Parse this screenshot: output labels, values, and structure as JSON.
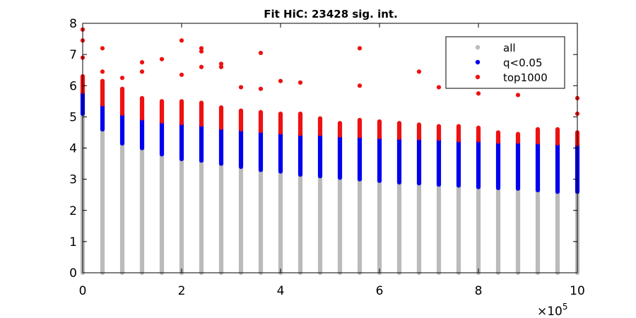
{
  "chart_data": {
    "type": "scatter",
    "title": "Fit HiC: 23428 sig. int.",
    "xlabel": "",
    "ylabel": "",
    "x_multiplier_label": "×10",
    "x_multiplier_exponent": "5",
    "xlim": [
      0,
      10
    ],
    "ylim": [
      0,
      8
    ],
    "x_ticks": [
      0,
      2,
      4,
      6,
      8,
      10
    ],
    "y_ticks": [
      0,
      1,
      2,
      3,
      4,
      5,
      6,
      7,
      8
    ],
    "grid": false,
    "legend_position": "top-right",
    "x": [
      0,
      0.4,
      0.8,
      1.2,
      1.6,
      2.0,
      2.4,
      2.8,
      3.2,
      3.6,
      4.0,
      4.4,
      4.8,
      5.2,
      5.6,
      6.0,
      6.4,
      6.8,
      7.2,
      7.6,
      8.0,
      8.4,
      8.8,
      9.2,
      9.6,
      10.0
    ],
    "series": [
      {
        "name": "all",
        "color": "#bbbbbb",
        "ranges": [
          [
            0,
            5.1
          ],
          [
            0,
            4.6
          ],
          [
            0,
            4.15
          ],
          [
            0,
            4.0
          ],
          [
            0,
            3.8
          ],
          [
            0,
            3.65
          ],
          [
            0,
            3.6
          ],
          [
            0,
            3.5
          ],
          [
            0,
            3.4
          ],
          [
            0,
            3.3
          ],
          [
            0,
            3.25
          ],
          [
            0,
            3.15
          ],
          [
            0,
            3.1
          ],
          [
            0,
            3.05
          ],
          [
            0,
            3.0
          ],
          [
            0,
            2.95
          ],
          [
            0,
            2.9
          ],
          [
            0,
            2.87
          ],
          [
            0,
            2.83
          ],
          [
            0,
            2.8
          ],
          [
            0,
            2.75
          ],
          [
            0,
            2.72
          ],
          [
            0,
            2.7
          ],
          [
            0,
            2.65
          ],
          [
            0,
            2.6
          ],
          [
            0,
            2.6
          ]
        ]
      },
      {
        "name": "q<0.05",
        "color": "#0000ee",
        "ranges": [
          [
            5.1,
            5.8
          ],
          [
            4.6,
            5.4
          ],
          [
            4.15,
            5.1
          ],
          [
            4.0,
            4.95
          ],
          [
            3.8,
            4.85
          ],
          [
            3.65,
            4.8
          ],
          [
            3.6,
            4.75
          ],
          [
            3.5,
            4.65
          ],
          [
            3.4,
            4.6
          ],
          [
            3.3,
            4.55
          ],
          [
            3.25,
            4.5
          ],
          [
            3.15,
            4.45
          ],
          [
            3.1,
            4.45
          ],
          [
            3.05,
            4.4
          ],
          [
            3.0,
            4.38
          ],
          [
            2.95,
            4.35
          ],
          [
            2.9,
            4.33
          ],
          [
            2.87,
            4.32
          ],
          [
            2.83,
            4.3
          ],
          [
            2.8,
            4.25
          ],
          [
            2.75,
            4.25
          ],
          [
            2.72,
            4.2
          ],
          [
            2.7,
            4.2
          ],
          [
            2.65,
            4.18
          ],
          [
            2.6,
            4.15
          ],
          [
            2.6,
            4.12
          ]
        ]
      },
      {
        "name": "top1000",
        "color": "#ee1111",
        "ranges": [
          [
            5.8,
            6.3
          ],
          [
            5.4,
            6.15
          ],
          [
            5.1,
            5.9
          ],
          [
            4.95,
            5.6
          ],
          [
            4.85,
            5.5
          ],
          [
            4.8,
            5.5
          ],
          [
            4.75,
            5.45
          ],
          [
            4.65,
            5.3
          ],
          [
            4.6,
            5.2
          ],
          [
            4.55,
            5.15
          ],
          [
            4.5,
            5.1
          ],
          [
            4.45,
            5.1
          ],
          [
            4.45,
            4.95
          ],
          [
            4.4,
            4.8
          ],
          [
            4.38,
            4.9
          ],
          [
            4.35,
            4.85
          ],
          [
            4.33,
            4.8
          ],
          [
            4.32,
            4.75
          ],
          [
            4.3,
            4.7
          ],
          [
            4.25,
            4.7
          ],
          [
            4.25,
            4.65
          ],
          [
            4.2,
            4.5
          ],
          [
            4.2,
            4.45
          ],
          [
            4.18,
            4.6
          ],
          [
            4.15,
            4.6
          ],
          [
            4.12,
            4.5
          ]
        ],
        "outliers": [
          [
            0,
            7.8
          ],
          [
            0,
            7.45
          ],
          [
            0,
            6.9
          ],
          [
            0.4,
            7.2
          ],
          [
            0.4,
            6.45
          ],
          [
            0.8,
            6.25
          ],
          [
            1.2,
            6.75
          ],
          [
            1.2,
            6.45
          ],
          [
            1.6,
            6.85
          ],
          [
            2.0,
            7.45
          ],
          [
            2.0,
            6.35
          ],
          [
            2.4,
            7.2
          ],
          [
            2.4,
            7.1
          ],
          [
            2.4,
            6.6
          ],
          [
            2.8,
            6.7
          ],
          [
            2.8,
            6.6
          ],
          [
            3.2,
            5.95
          ],
          [
            3.6,
            7.05
          ],
          [
            3.6,
            5.9
          ],
          [
            4.0,
            6.15
          ],
          [
            4.4,
            6.1
          ],
          [
            5.6,
            7.2
          ],
          [
            5.6,
            6.0
          ],
          [
            6.8,
            6.45
          ],
          [
            7.2,
            5.95
          ],
          [
            8.0,
            5.75
          ],
          [
            8.8,
            5.7
          ],
          [
            9.2,
            6.0
          ],
          [
            10.0,
            5.6
          ],
          [
            10.0,
            5.1
          ]
        ]
      }
    ]
  }
}
